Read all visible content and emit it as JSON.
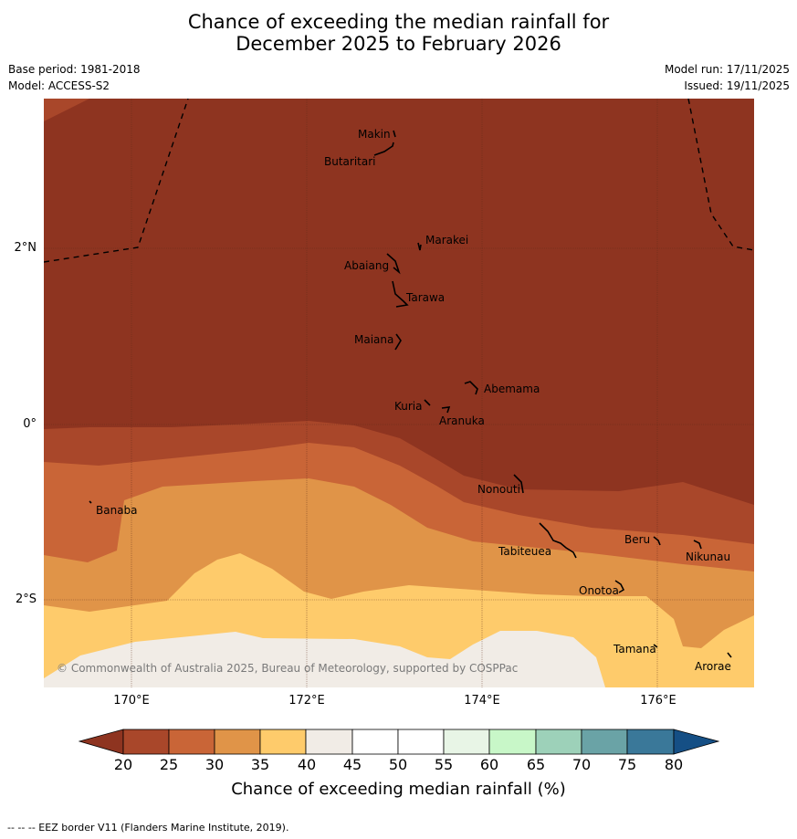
{
  "title": {
    "line1": "Chance of exceeding the median rainfall for",
    "line2": "December 2025 to February 2026"
  },
  "meta": {
    "base_period": "Base period: 1981-2018",
    "model": "Model: ACCESS-S2",
    "model_run": "Model run: 17/11/2025",
    "issued": "Issued: 19/11/2025"
  },
  "axes": {
    "lat_labels": [
      "2°N",
      "0°",
      "2°S"
    ],
    "lon_labels": [
      "170°E",
      "172°E",
      "174°E",
      "176°E"
    ]
  },
  "places": {
    "makin": "Makin",
    "butaritari": "Butaritari",
    "marakei": "Marakei",
    "abaiang": "Abaiang",
    "tarawa": "Tarawa",
    "maiana": "Maiana",
    "abemama": "Abemama",
    "kuria": "Kuria",
    "aranuka": "Aranuka",
    "nonouti": "Nonouti",
    "banaba": "Banaba",
    "tabiteuea": "Tabiteuea",
    "beru": "Beru",
    "nikunau": "Nikunau",
    "onotoa": "Onotoa",
    "tamana": "Tamana",
    "arorae": "Arorae"
  },
  "copyright": "© Commonwealth of Australia 2025, Bureau of Meteorology, supported by COSPPac",
  "colorbar": {
    "title": "Chance of exceeding median rainfall (%)",
    "ticks": [
      "20",
      "25",
      "30",
      "35",
      "40",
      "45",
      "50",
      "55",
      "60",
      "65",
      "70",
      "75",
      "80"
    ],
    "colors": {
      "under_20": "#8e3420",
      "b20_25": "#a9472a",
      "b25_30": "#c96537",
      "b30_35": "#e09448",
      "b35_40": "#fecb6b",
      "b40_45": "#f1ece6",
      "b45_50": "#ffffff",
      "b50_55": "#ffffff",
      "b55_60": "#e8f5e6",
      "b60_65": "#c8f7c8",
      "b65_70": "#9dd1b9",
      "b70_75": "#6aa3a6",
      "b75_80": "#3a7899",
      "over_80": "#154f85"
    }
  },
  "footnote": "--  --  -- EEZ border V11 (Flanders Marine Institute, 2019)."
}
